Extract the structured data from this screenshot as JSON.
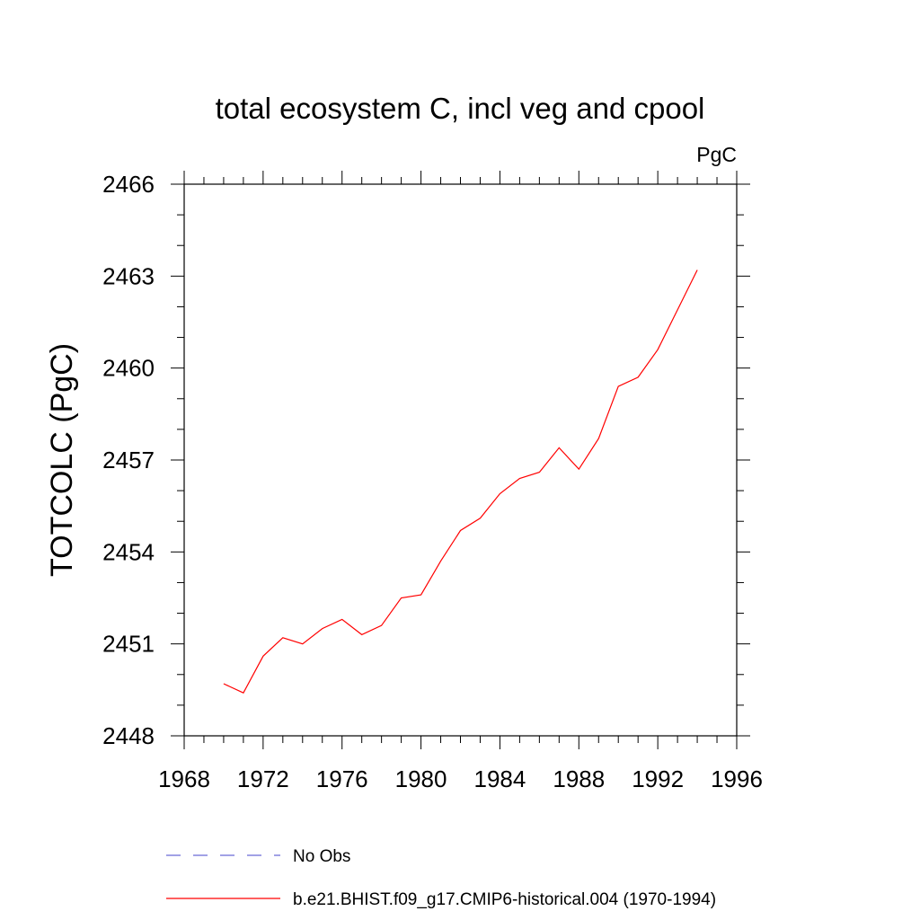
{
  "chart_data": {
    "type": "line",
    "title": "total ecosystem C, incl veg and cpool",
    "units": "PgC",
    "ylabel": "TOTCOLC  (PgC)",
    "xlabel": "",
    "xlim": [
      1968,
      1996
    ],
    "ylim": [
      2448,
      2466
    ],
    "x_ticks": [
      1968,
      1972,
      1976,
      1980,
      1984,
      1988,
      1992,
      1996
    ],
    "y_ticks": [
      2448,
      2451,
      2454,
      2457,
      2460,
      2463,
      2466
    ],
    "x_minor_step": 1,
    "y_minor_step": 1,
    "grid": false,
    "legend_position": "bottom",
    "series": [
      {
        "name": "b.e21.BHIST.f09_g17.CMIP6-historical.004 (1970-1994)",
        "color": "#ff0000",
        "style": "solid",
        "x": [
          1970,
          1971,
          1972,
          1973,
          1974,
          1975,
          1976,
          1977,
          1978,
          1979,
          1980,
          1981,
          1982,
          1983,
          1984,
          1985,
          1986,
          1987,
          1988,
          1989,
          1990,
          1991,
          1992,
          1993,
          1994
        ],
        "y": [
          2449.7,
          2449.4,
          2450.6,
          2451.2,
          2451.0,
          2451.5,
          2451.8,
          2451.3,
          2451.6,
          2452.5,
          2452.6,
          2453.7,
          2454.7,
          2455.1,
          2455.9,
          2456.4,
          2456.6,
          2457.4,
          2456.7,
          2457.7,
          2459.4,
          2459.7,
          2460.6,
          2461.9,
          2463.2
        ]
      }
    ],
    "legend": [
      {
        "label": "No Obs",
        "color": "#6b6bd6",
        "style": "dashed"
      },
      {
        "label": "b.e21.BHIST.f09_g17.CMIP6-historical.004 (1970-1994)",
        "color": "#ff0000",
        "style": "solid"
      }
    ]
  }
}
